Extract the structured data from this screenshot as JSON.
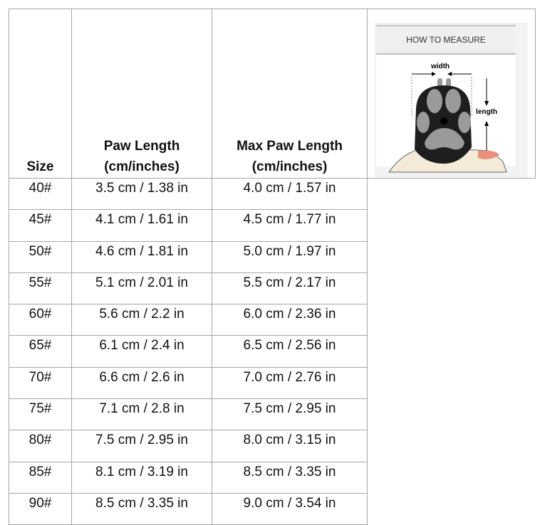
{
  "table": {
    "headers": [
      "Size",
      "Paw Length\n(cm/inches)",
      "Max Paw Length\n(cm/inches)"
    ],
    "header_lines": [
      [
        "Size"
      ],
      [
        "Paw Length",
        "(cm/inches)"
      ],
      [
        "Max Paw Length",
        "(cm/inches)"
      ]
    ],
    "rows": [
      [
        "40#",
        "3.5 cm / 1.38 in",
        "4.0 cm / 1.57 in"
      ],
      [
        "45#",
        "4.1 cm / 1.61 in",
        "4.5 cm / 1.77 in"
      ],
      [
        "50#",
        "4.6 cm / 1.81 in",
        "5.0 cm / 1.97 in"
      ],
      [
        "55#",
        "5.1 cm / 2.01 in",
        "5.5 cm / 2.17 in"
      ],
      [
        "60#",
        "5.6 cm / 2.2 in",
        "6.0 cm / 2.36 in"
      ],
      [
        "65#",
        "6.1 cm / 2.4 in",
        "6.5 cm / 2.56 in"
      ],
      [
        "70#",
        "6.6 cm / 2.6 in",
        "7.0 cm / 2.76 in"
      ],
      [
        "75#",
        "7.1 cm / 2.8 in",
        "7.5 cm / 2.95 in"
      ],
      [
        "80#",
        "7.5 cm / 2.95 in",
        "8.0 cm / 3.15 in"
      ],
      [
        "85#",
        "8.1 cm / 3.19 in",
        "8.5 cm / 3.35 in"
      ],
      [
        "90#",
        "8.5 cm / 3.35 in",
        "9.0 cm / 3.54 in"
      ]
    ]
  },
  "measure_image": {
    "title": "HOW TO MEASURE",
    "width_label": "width",
    "length_label": "length",
    "icon": "dog-paw-measure-illustration"
  }
}
